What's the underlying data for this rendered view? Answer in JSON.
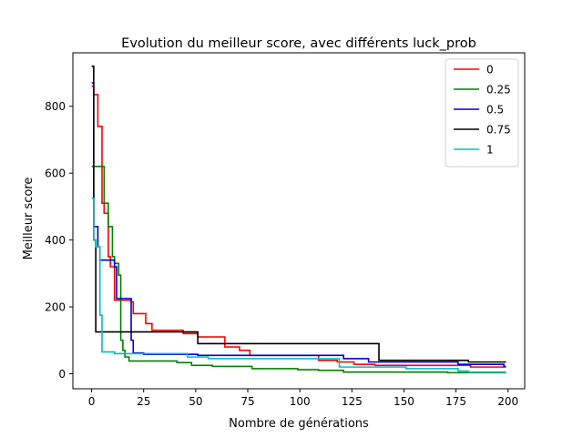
{
  "chart_data": {
    "type": "line",
    "title": "Evolution du meilleur score, avec différents luck_prob",
    "xlabel": "Nombre de générations",
    "ylabel": "Meilleur score",
    "xlim": [
      -9,
      208
    ],
    "ylim": [
      -45,
      960
    ],
    "xticks": [
      0,
      25,
      50,
      75,
      100,
      125,
      150,
      175,
      200
    ],
    "yticks": [
      0,
      200,
      400,
      600,
      800
    ],
    "grid": false,
    "legend_position": "top-right",
    "series": [
      {
        "name": "0",
        "color": "#ff0000",
        "steps": [
          [
            0,
            860
          ],
          [
            1,
            835
          ],
          [
            2,
            835
          ],
          [
            3,
            740
          ],
          [
            4,
            740
          ],
          [
            5,
            510
          ],
          [
            6,
            480
          ],
          [
            7,
            480
          ],
          [
            8,
            350
          ],
          [
            9,
            320
          ],
          [
            10,
            320
          ],
          [
            11,
            220
          ],
          [
            14,
            220
          ],
          [
            15,
            220
          ],
          [
            18,
            220
          ],
          [
            19,
            215
          ],
          [
            20,
            180
          ],
          [
            22,
            180
          ],
          [
            25,
            180
          ],
          [
            26,
            150
          ],
          [
            28,
            150
          ],
          [
            29,
            130
          ],
          [
            40,
            130
          ],
          [
            44,
            120
          ],
          [
            50,
            120
          ],
          [
            51,
            110
          ],
          [
            63,
            110
          ],
          [
            64,
            80
          ],
          [
            70,
            80
          ],
          [
            71,
            70
          ],
          [
            75,
            70
          ],
          [
            76,
            55
          ],
          [
            108,
            55
          ],
          [
            109,
            40
          ],
          [
            117,
            40
          ],
          [
            118,
            35
          ],
          [
            125,
            35
          ],
          [
            126,
            28
          ],
          [
            135,
            28
          ],
          [
            136,
            25
          ],
          [
            181,
            25
          ],
          [
            182,
            20
          ],
          [
            199,
            20
          ]
        ]
      },
      {
        "name": "0.25",
        "color": "#008000",
        "steps": [
          [
            0,
            620
          ],
          [
            5,
            620
          ],
          [
            6,
            510
          ],
          [
            7,
            510
          ],
          [
            8,
            440
          ],
          [
            9,
            440
          ],
          [
            10,
            350
          ],
          [
            11,
            330
          ],
          [
            12,
            330
          ],
          [
            13,
            295
          ],
          [
            14,
            100
          ],
          [
            15,
            70
          ],
          [
            16,
            50
          ],
          [
            18,
            38
          ],
          [
            40,
            38
          ],
          [
            41,
            33
          ],
          [
            47,
            33
          ],
          [
            48,
            25
          ],
          [
            57,
            25
          ],
          [
            58,
            22
          ],
          [
            76,
            22
          ],
          [
            77,
            15
          ],
          [
            98,
            15
          ],
          [
            99,
            12
          ],
          [
            108,
            12
          ],
          [
            109,
            10
          ],
          [
            120,
            10
          ],
          [
            121,
            5
          ],
          [
            170,
            5
          ],
          [
            171,
            3
          ],
          [
            199,
            3
          ]
        ]
      },
      {
        "name": "0.5",
        "color": "#0000cd",
        "steps": [
          [
            0,
            870
          ],
          [
            1,
            440
          ],
          [
            2,
            440
          ],
          [
            3,
            380
          ],
          [
            4,
            340
          ],
          [
            10,
            340
          ],
          [
            11,
            320
          ],
          [
            12,
            225
          ],
          [
            18,
            225
          ],
          [
            19,
            100
          ],
          [
            20,
            62
          ],
          [
            25,
            58
          ],
          [
            50,
            58
          ],
          [
            51,
            55
          ],
          [
            120,
            55
          ],
          [
            121,
            45
          ],
          [
            132,
            45
          ],
          [
            133,
            35
          ],
          [
            175,
            35
          ],
          [
            176,
            28
          ],
          [
            197,
            28
          ],
          [
            198,
            22
          ],
          [
            199,
            22
          ]
        ]
      },
      {
        "name": "0.75",
        "color": "#000000",
        "steps": [
          [
            0,
            920
          ],
          [
            1,
            400
          ],
          [
            2,
            125
          ],
          [
            40,
            125
          ],
          [
            50,
            125
          ],
          [
            51,
            90
          ],
          [
            137,
            90
          ],
          [
            138,
            40
          ],
          [
            180,
            40
          ],
          [
            181,
            35
          ],
          [
            199,
            35
          ]
        ]
      },
      {
        "name": "1",
        "color": "#00bfbf",
        "steps": [
          [
            0,
            525
          ],
          [
            1,
            400
          ],
          [
            2,
            380
          ],
          [
            3,
            380
          ],
          [
            4,
            175
          ],
          [
            5,
            65
          ],
          [
            10,
            65
          ],
          [
            11,
            60
          ],
          [
            20,
            60
          ],
          [
            45,
            60
          ],
          [
            46,
            50
          ],
          [
            55,
            50
          ],
          [
            56,
            45
          ],
          [
            118,
            45
          ],
          [
            119,
            20
          ],
          [
            150,
            20
          ],
          [
            151,
            15
          ],
          [
            175,
            15
          ],
          [
            176,
            8
          ],
          [
            180,
            8
          ],
          [
            181,
            5
          ],
          [
            199,
            5
          ]
        ]
      }
    ]
  }
}
